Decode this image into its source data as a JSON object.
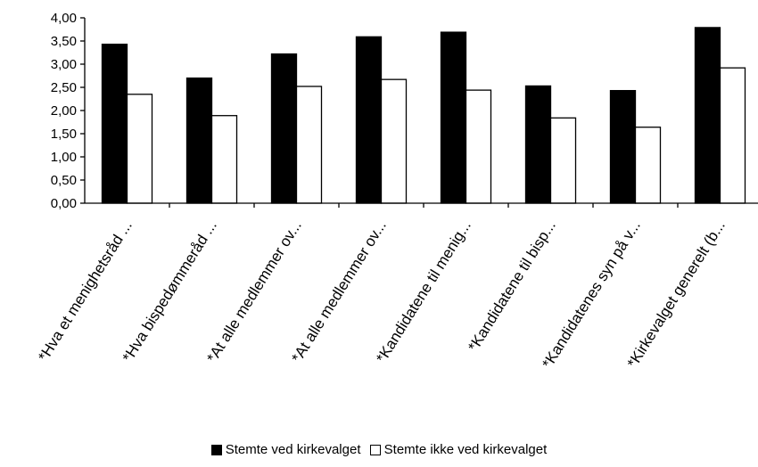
{
  "chart_data": {
    "type": "bar",
    "title": "",
    "xlabel": "",
    "ylabel": "",
    "ylim": [
      0,
      4
    ],
    "yticks": [
      "0,00",
      "0,50",
      "1,00",
      "1,50",
      "2,00",
      "2,50",
      "3,00",
      "3,50",
      "4,00"
    ],
    "categories": [
      "*Hva et menighetsråd ...",
      "*Hva bispedømmeråd ...",
      "*At alle medlemmer ov...",
      "*At alle medlemmer ov...",
      "*Kandidatene til menig...",
      "*Kandidatene til bisp...",
      "*Kandidatenes syn på v...",
      "*Kirkevalget generelt (b..."
    ],
    "series": [
      {
        "name": "Stemte ved kirkevalget",
        "color": "#000000",
        "values": [
          3.43,
          2.7,
          3.22,
          3.59,
          3.69,
          2.53,
          2.43,
          3.79
        ]
      },
      {
        "name": "Stemte ikke ved kirkevalget",
        "color": "#ffffff",
        "values": [
          2.35,
          1.89,
          2.52,
          2.67,
          2.44,
          1.84,
          1.64,
          2.92
        ]
      }
    ],
    "legend_position": "bottom",
    "grid": false
  }
}
